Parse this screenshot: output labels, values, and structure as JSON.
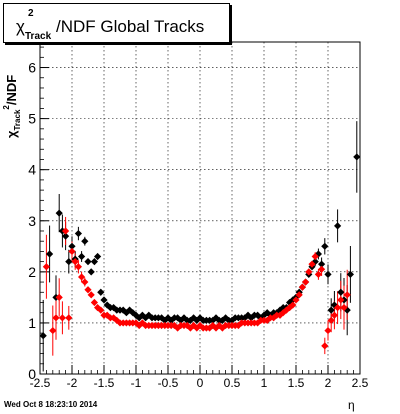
{
  "chart_data": {
    "type": "scatter",
    "title_parts": {
      "chi": "χ",
      "sup": "2",
      "sub": "Track",
      "rest": "/NDF  Global Tracks"
    },
    "xlabel": "η",
    "ylabel_parts": {
      "chi": "χ",
      "sup": "2",
      "sub": "Track",
      "rest": "/NDF"
    },
    "xlim": [
      -2.5,
      2.5
    ],
    "ylim": [
      0,
      6.5
    ],
    "x_ticks": [
      "-2.5",
      "-2",
      "-1.5",
      "-1",
      "-0.5",
      "0",
      "0.5",
      "1",
      "1.5",
      "2",
      "2.5"
    ],
    "y_ticks": [
      "0",
      "1",
      "2",
      "3",
      "4",
      "5",
      "6"
    ],
    "grid": true,
    "colors": {
      "series1": "#000000",
      "series2": "#ff0000"
    },
    "series": [
      {
        "x": [
          -2.45,
          -2.35,
          -2.25,
          -2.2,
          -2.15,
          -2.1,
          -2.05,
          -2.0,
          -1.95,
          -1.9,
          -1.85,
          -1.8,
          -1.75,
          -1.7,
          -1.65,
          -1.6,
          -1.55,
          -1.5,
          -1.45,
          -1.4,
          -1.35,
          -1.3,
          -1.25,
          -1.2,
          -1.15,
          -1.1,
          -1.05,
          -1.0,
          -0.95,
          -0.9,
          -0.85,
          -0.8,
          -0.75,
          -0.7,
          -0.65,
          -0.6,
          -0.55,
          -0.5,
          -0.45,
          -0.4,
          -0.35,
          -0.3,
          -0.25,
          -0.2,
          -0.15,
          -0.1,
          -0.05,
          0.0,
          0.05,
          0.1,
          0.15,
          0.2,
          0.25,
          0.3,
          0.35,
          0.4,
          0.45,
          0.5,
          0.55,
          0.6,
          0.65,
          0.7,
          0.75,
          0.8,
          0.85,
          0.9,
          0.95,
          1.0,
          1.05,
          1.1,
          1.15,
          1.2,
          1.25,
          1.3,
          1.35,
          1.4,
          1.45,
          1.5,
          1.55,
          1.6,
          1.65,
          1.7,
          1.75,
          1.8,
          1.85,
          1.9,
          1.95,
          2.0,
          2.05,
          2.1,
          2.15,
          2.2,
          2.25,
          2.3,
          2.35,
          2.45
        ],
        "y": [
          0.75,
          2.35,
          1.5,
          3.15,
          2.8,
          2.7,
          2.2,
          2.5,
          2.25,
          2.75,
          2.3,
          2.6,
          2.2,
          2.0,
          2.2,
          2.3,
          1.6,
          1.45,
          1.35,
          1.3,
          1.3,
          1.25,
          1.25,
          1.25,
          1.2,
          1.25,
          1.2,
          1.15,
          1.1,
          1.15,
          1.1,
          1.15,
          1.1,
          1.1,
          1.1,
          1.1,
          1.05,
          1.1,
          1.05,
          1.1,
          1.1,
          1.05,
          1.1,
          1.05,
          1.05,
          1.1,
          1.05,
          1.1,
          1.05,
          1.05,
          1.05,
          1.05,
          1.1,
          1.05,
          1.05,
          1.1,
          1.05,
          1.05,
          1.1,
          1.1,
          1.1,
          1.1,
          1.15,
          1.1,
          1.15,
          1.15,
          1.1,
          1.15,
          1.2,
          1.15,
          1.2,
          1.2,
          1.25,
          1.3,
          1.3,
          1.4,
          1.45,
          1.5,
          1.6,
          1.7,
          1.8,
          1.95,
          2.1,
          2.2,
          2.35,
          2.15,
          2.5,
          1.95,
          1.25,
          1.35,
          2.9,
          1.6,
          1.45,
          1.25,
          1.95,
          4.25
        ]
      },
      {
        "x": [
          -2.4,
          -2.3,
          -2.25,
          -2.2,
          -2.15,
          -2.1,
          -2.05,
          -2.0,
          -1.95,
          -1.9,
          -1.85,
          -1.8,
          -1.75,
          -1.7,
          -1.65,
          -1.6,
          -1.55,
          -1.5,
          -1.45,
          -1.4,
          -1.35,
          -1.3,
          -1.25,
          -1.2,
          -1.15,
          -1.1,
          -1.05,
          -1.0,
          -0.95,
          -0.9,
          -0.85,
          -0.8,
          -0.75,
          -0.7,
          -0.65,
          -0.6,
          -0.55,
          -0.5,
          -0.45,
          -0.4,
          -0.35,
          -0.3,
          -0.25,
          -0.2,
          -0.15,
          -0.1,
          -0.05,
          0.0,
          0.05,
          0.1,
          0.15,
          0.2,
          0.25,
          0.3,
          0.35,
          0.4,
          0.45,
          0.5,
          0.55,
          0.6,
          0.65,
          0.7,
          0.75,
          0.8,
          0.85,
          0.9,
          0.95,
          1.0,
          1.05,
          1.1,
          1.15,
          1.2,
          1.25,
          1.3,
          1.35,
          1.4,
          1.45,
          1.5,
          1.55,
          1.6,
          1.65,
          1.7,
          1.75,
          1.8,
          1.85,
          1.9,
          1.95,
          2.0,
          2.05,
          2.1,
          2.15,
          2.2,
          2.25,
          2.3
        ],
        "y": [
          2.1,
          0.85,
          1.1,
          1.5,
          1.1,
          2.8,
          1.1,
          2.4,
          2.2,
          2.1,
          1.9,
          1.8,
          1.65,
          1.55,
          1.4,
          1.3,
          1.25,
          1.15,
          1.15,
          1.1,
          1.1,
          1.05,
          1.0,
          1.0,
          1.0,
          1.0,
          1.0,
          1.0,
          0.95,
          1.0,
          0.95,
          0.95,
          0.95,
          0.95,
          0.95,
          0.95,
          0.95,
          0.95,
          0.95,
          0.95,
          0.9,
          0.95,
          0.95,
          0.95,
          0.9,
          0.95,
          0.9,
          0.95,
          0.9,
          0.9,
          0.9,
          0.95,
          0.9,
          0.95,
          0.9,
          0.95,
          0.95,
          0.95,
          0.95,
          0.95,
          1.0,
          1.0,
          1.0,
          1.0,
          1.0,
          1.0,
          1.05,
          1.05,
          1.05,
          1.1,
          1.1,
          1.15,
          1.15,
          1.2,
          1.25,
          1.3,
          1.35,
          1.45,
          1.55,
          1.7,
          1.8,
          2.0,
          2.15,
          2.3,
          1.95,
          2.05,
          0.55,
          0.85,
          1.05,
          1.15,
          1.3,
          1.45,
          1.3,
          1.55
        ]
      }
    ],
    "date_stamp": "Wed Oct  8 18:23:10 2014"
  }
}
